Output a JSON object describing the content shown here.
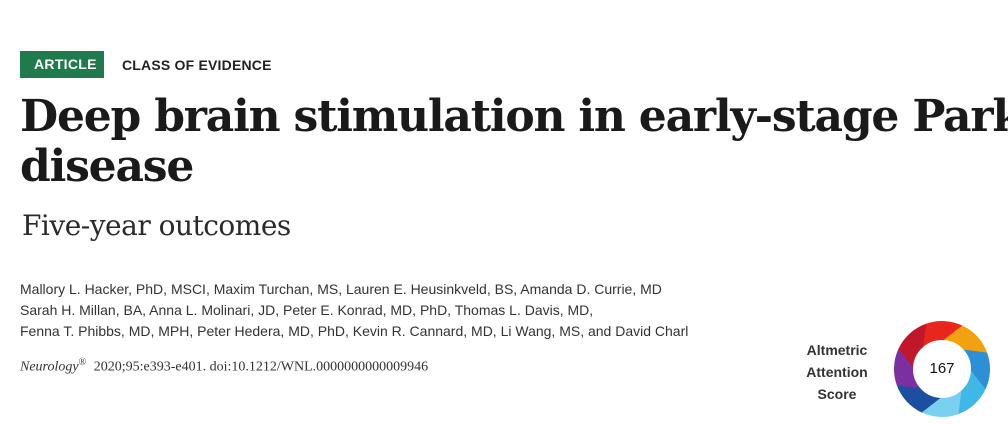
{
  "header": {
    "badge": "ARTICLE",
    "evidence": "CLASS OF EVIDENCE"
  },
  "title": {
    "line1": "Deep brain stimulation in early-stage Parkinson",
    "line2": "disease"
  },
  "subtitle": "Five-year outcomes",
  "authors": [
    "Mallory L. Hacker, PhD, MSCI, Maxim Turchan, MS, Lauren E. Heusinkveld, BS, Amanda D. Currie, MD",
    "Sarah H. Millan, BA, Anna L. Molinari, JD, Peter E. Konrad, MD, PhD, Thomas L. Davis, MD,",
    "Fenna T. Phibbs, MD, MPH, Peter Hedera, MD, PhD, Kevin R. Cannard, MD, Li Wang, MS, and David Charl"
  ],
  "citation": {
    "journal": "Neurology",
    "reg": "®",
    "details": "2020;95:e393-e401. doi:10.1212/WNL.0000000000009946"
  },
  "altmetric": {
    "label_lines": [
      "Altmetric",
      "Attention",
      "Score"
    ],
    "score": "167",
    "colors": [
      "#e8261d",
      "#f2a20f",
      "#2d8fd5",
      "#3fb8e8",
      "#7ad0f0",
      "#1c4fa0",
      "#7b2fa0",
      "#c0182a"
    ]
  },
  "colors": {
    "badge_bg": "#1f7a4d"
  }
}
